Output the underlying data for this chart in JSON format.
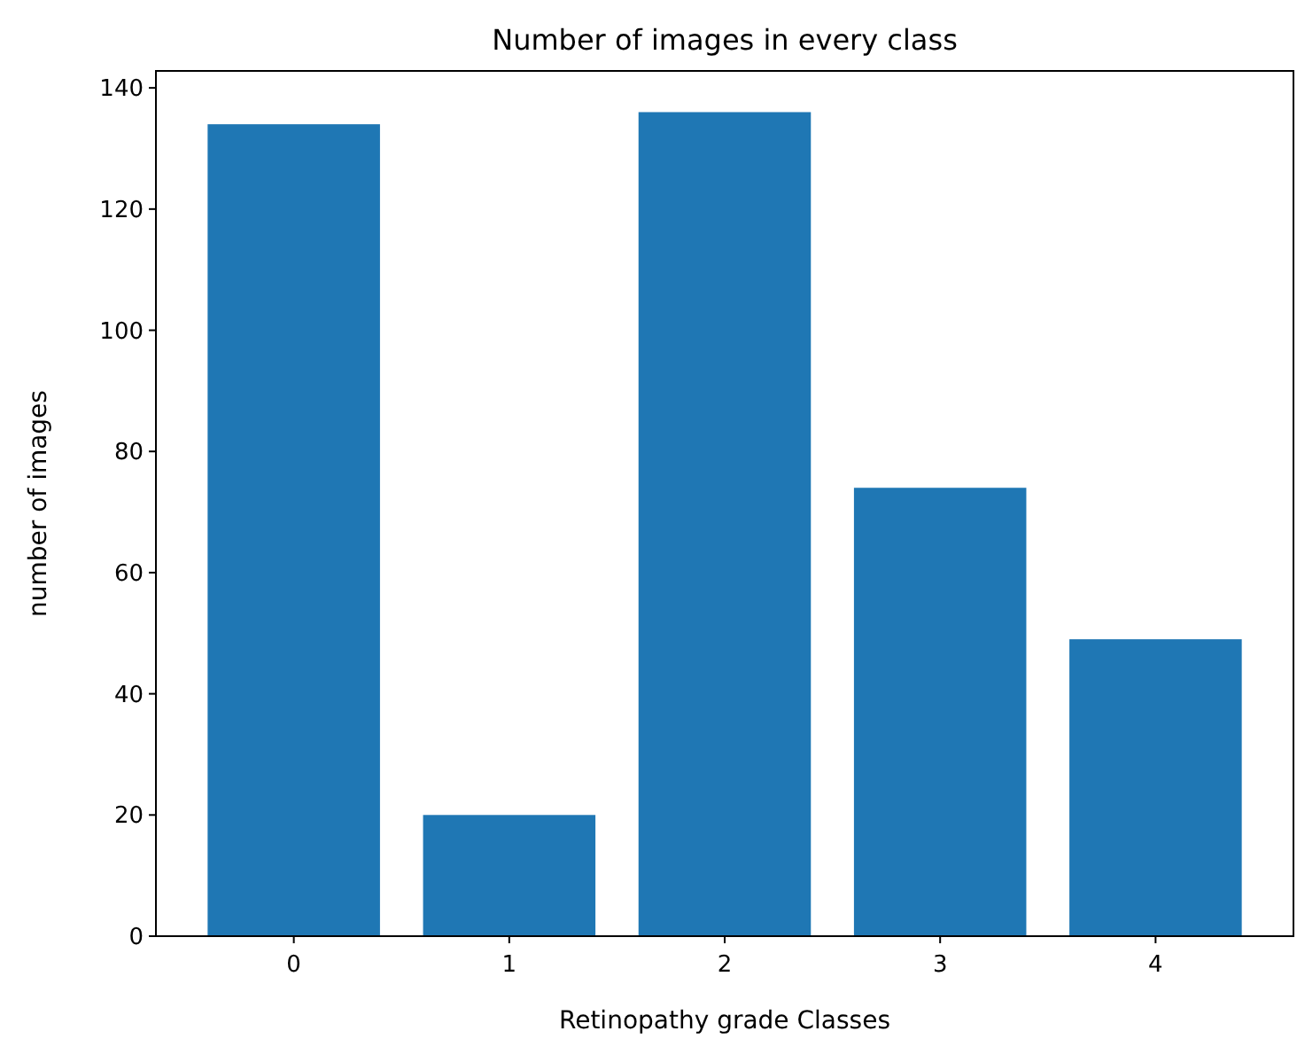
{
  "chart_data": {
    "type": "bar",
    "title": "Number of images in every class",
    "xlabel": "Retinopathy grade Classes",
    "ylabel": "number of images",
    "categories": [
      "0",
      "1",
      "2",
      "3",
      "4"
    ],
    "values": [
      134,
      20,
      136,
      74,
      49
    ],
    "color": "#1f77b4",
    "ylim": [
      0,
      142.8
    ],
    "yticks": [
      0,
      20,
      40,
      60,
      80,
      100,
      120,
      140
    ],
    "grid": false
  }
}
